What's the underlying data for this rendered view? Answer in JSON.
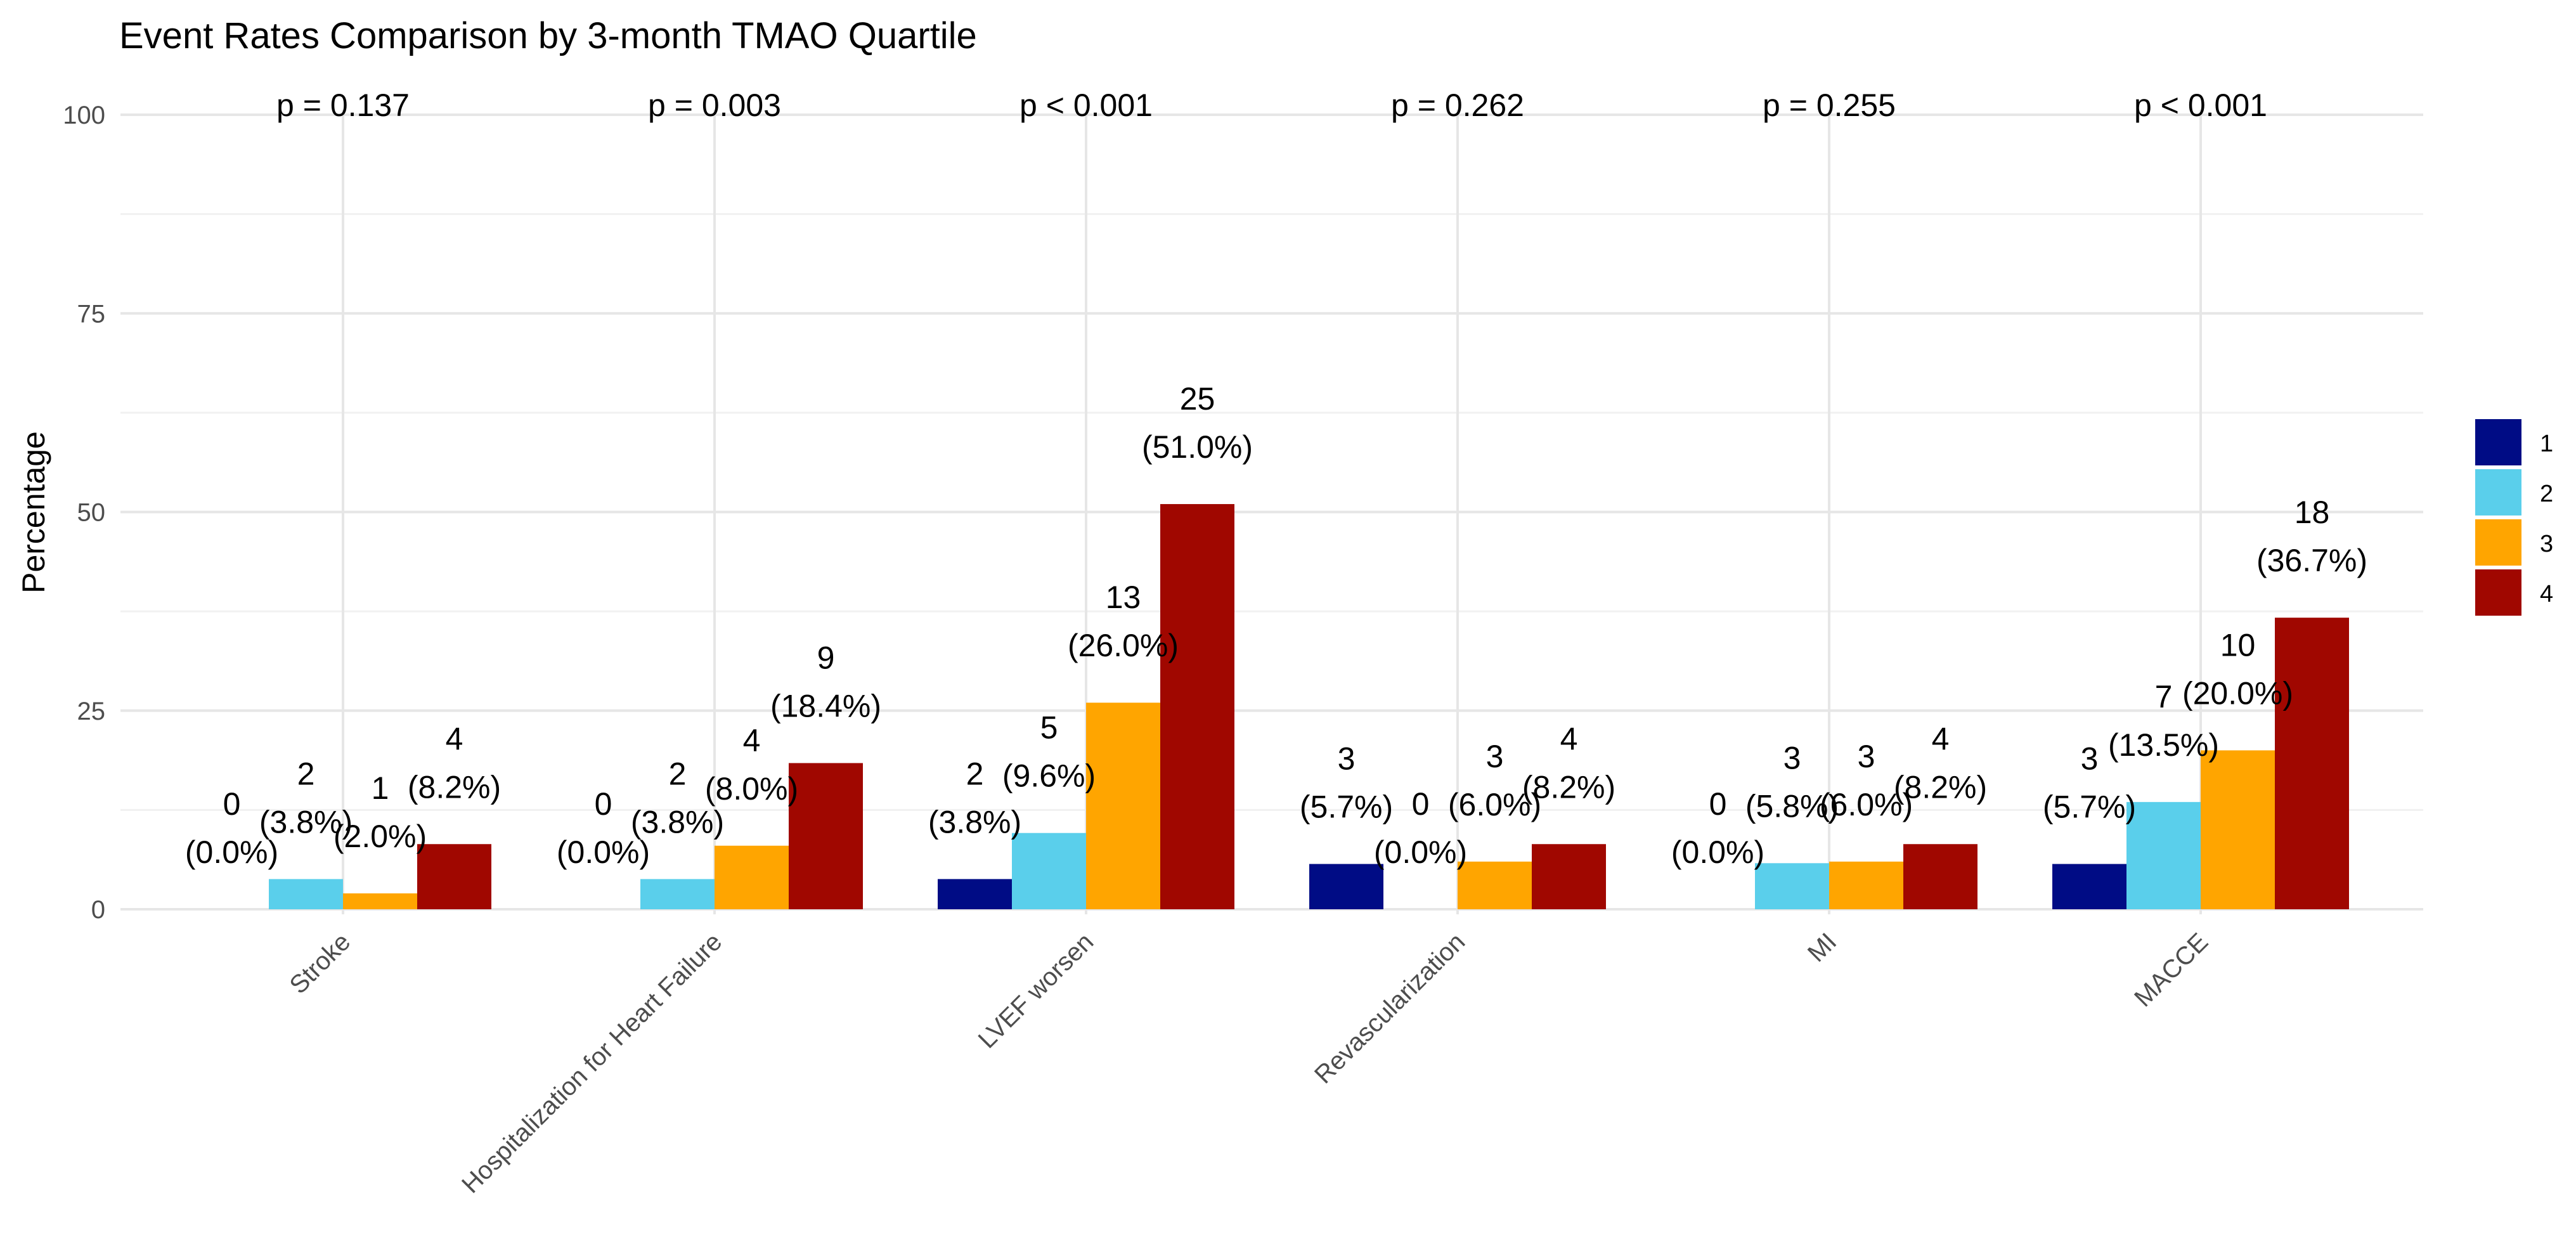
{
  "chart_data": {
    "type": "bar",
    "title": "Event Rates Comparison by 3-month TMAO Quartile",
    "xlabel": "",
    "ylabel": "Percentage",
    "ylim": [
      0,
      100
    ],
    "yticks": [
      0,
      25,
      50,
      75,
      100
    ],
    "grid": true,
    "legend_position": "right",
    "categories": [
      "Stroke",
      "Hospitalization for Heart Failure",
      "LVEF worsen",
      "Revascularization",
      "MI",
      "MACCE"
    ],
    "p_values": [
      "p = 0.137",
      "p = 0.003",
      "p < 0.001",
      "p = 0.262",
      "p = 0.255",
      "p < 0.001"
    ],
    "series": [
      {
        "name": "1",
        "color": "#000c85",
        "counts": [
          0,
          0,
          2,
          3,
          0,
          3
        ],
        "values": [
          0.0,
          0.0,
          3.8,
          5.7,
          0.0,
          5.7
        ]
      },
      {
        "name": "2",
        "color": "#5acfeb",
        "counts": [
          2,
          2,
          5,
          0,
          3,
          7
        ],
        "values": [
          3.8,
          3.8,
          9.6,
          0.0,
          5.8,
          13.5
        ]
      },
      {
        "name": "3",
        "color": "#ffa500",
        "counts": [
          1,
          4,
          13,
          3,
          3,
          10
        ],
        "values": [
          2.0,
          8.0,
          26.0,
          6.0,
          6.0,
          20.0
        ]
      },
      {
        "name": "4",
        "color": "#a00700",
        "counts": [
          4,
          9,
          25,
          4,
          4,
          18
        ],
        "values": [
          8.2,
          18.4,
          51.0,
          8.2,
          8.2,
          36.7
        ]
      }
    ]
  }
}
